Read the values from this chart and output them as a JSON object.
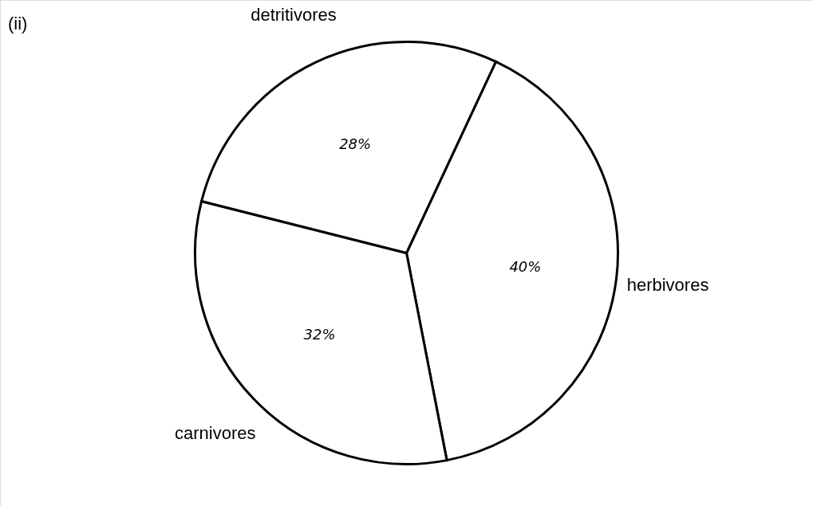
{
  "chart_data": {
    "type": "pie",
    "categories": [
      "herbivores",
      "carnivores",
      "detritivores"
    ],
    "values": [
      40,
      32,
      28
    ],
    "value_labels": [
      "40%",
      "32%",
      "28%"
    ],
    "colors": [
      "#ffffff",
      "#ffffff",
      "#ffffff"
    ],
    "annotations": [
      "(ii)"
    ]
  }
}
